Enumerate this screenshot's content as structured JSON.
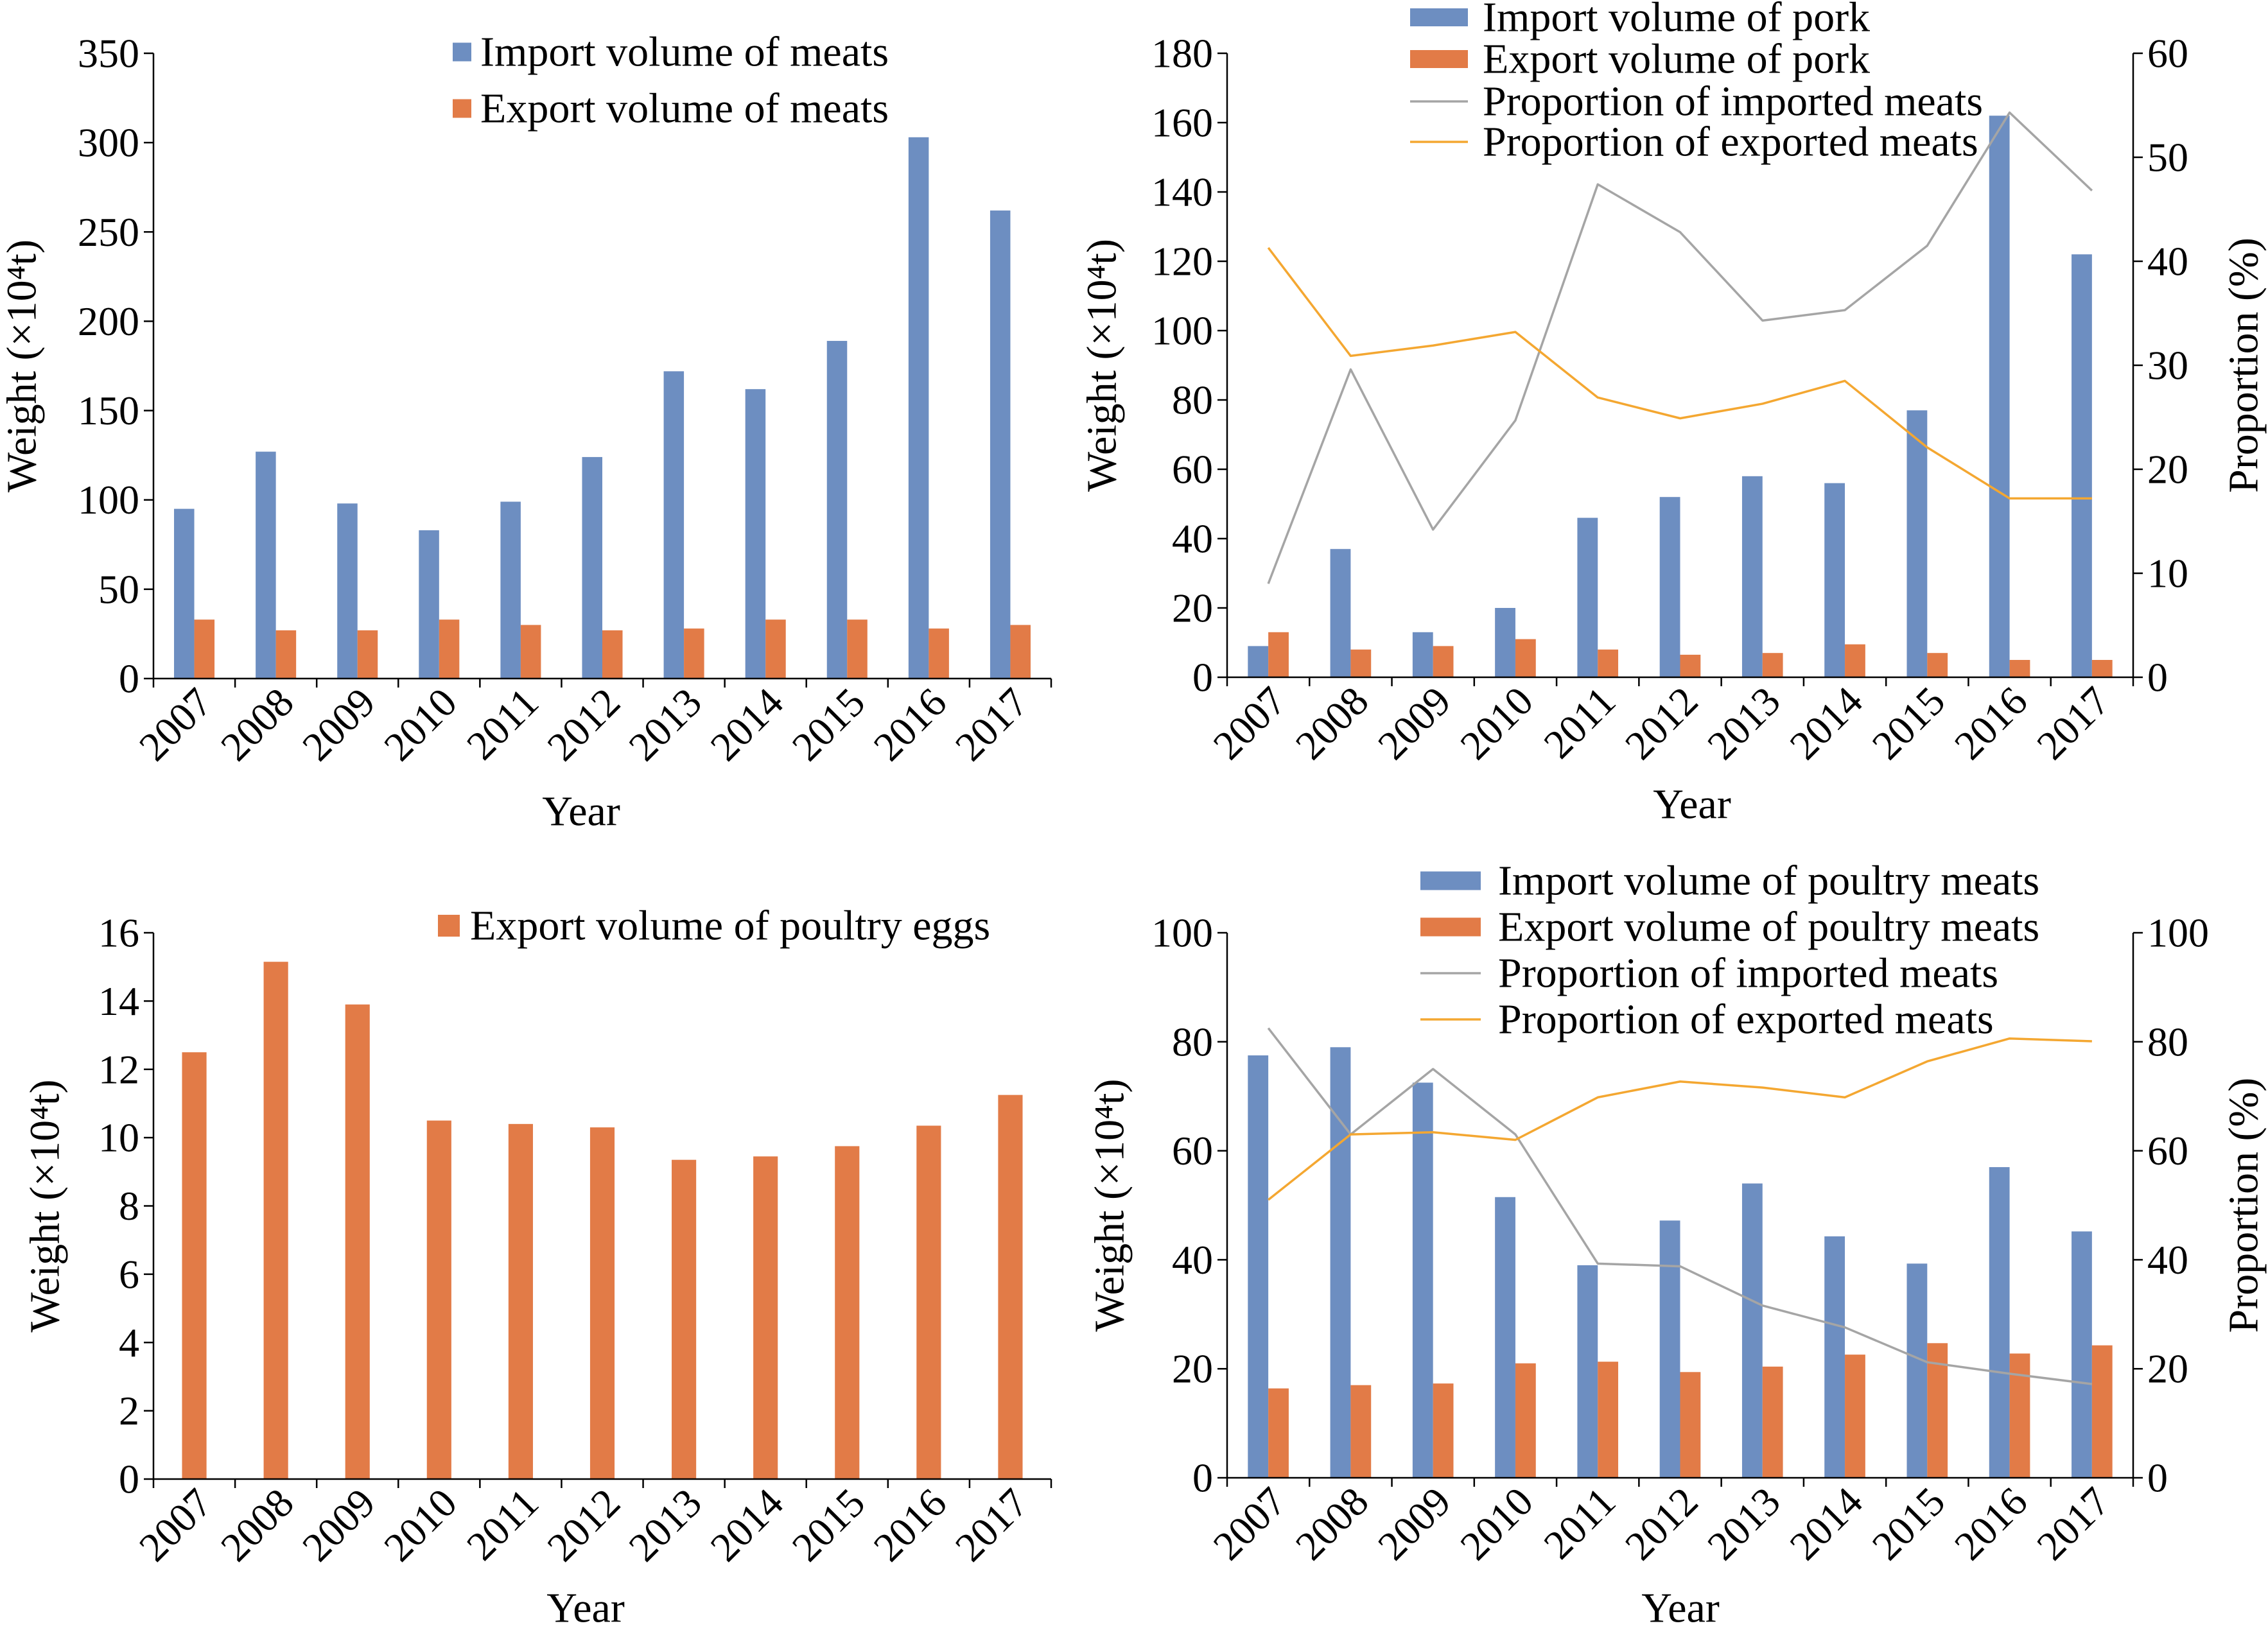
{
  "chart_data": [
    {
      "type": "bar",
      "categories": [
        "2007",
        "2008",
        "2009",
        "2010",
        "2011",
        "2012",
        "2013",
        "2014",
        "2015",
        "2016",
        "2017"
      ],
      "series": [
        {
          "name": "Import volume of meats",
          "type": "bar",
          "axis": "left",
          "color": "#6d8ec1",
          "values": [
            95,
            127,
            98,
            83,
            99,
            124,
            172,
            162,
            189,
            303,
            262
          ]
        },
        {
          "name": "Export volume of meats",
          "type": "bar",
          "axis": "left",
          "color": "#e27b47",
          "values": [
            33,
            27,
            27,
            33,
            30,
            27,
            28,
            33,
            33,
            28,
            30
          ]
        }
      ],
      "xlabel": "Year",
      "ylabel": "Weight (×10⁴t)",
      "ylim": [
        0,
        350
      ],
      "yticks": [
        0,
        50,
        100,
        150,
        200,
        250,
        300,
        350
      ],
      "legend": "top",
      "grid": false
    },
    {
      "type": "bar",
      "categories": [
        "2007",
        "2008",
        "2009",
        "2010",
        "2011",
        "2012",
        "2013",
        "2014",
        "2015",
        "2016",
        "2017"
      ],
      "series": [
        {
          "name": "Import volume of pork",
          "type": "bar",
          "axis": "left",
          "color": "#6d8ec1",
          "values": [
            9,
            37,
            13,
            20,
            46,
            52,
            58,
            56,
            77,
            162,
            122
          ]
        },
        {
          "name": "Export volume of pork",
          "type": "bar",
          "axis": "left",
          "color": "#e27b47",
          "values": [
            13,
            8,
            9,
            11,
            8,
            6.5,
            7,
            9.5,
            7,
            5,
            5
          ]
        },
        {
          "name": "Proportion of imported meats",
          "type": "line",
          "axis": "right",
          "color": "#a5a5a5",
          "values": [
            9,
            29.6,
            14.2,
            24.7,
            47.4,
            42.8,
            34.3,
            35.3,
            41.5,
            54.3,
            46.8
          ]
        },
        {
          "name": "Proportion of exported meats",
          "type": "line",
          "axis": "right",
          "color": "#f4a731",
          "values": [
            41.3,
            30.9,
            31.9,
            33.2,
            26.9,
            24.9,
            26.3,
            28.5,
            22.1,
            17.2,
            17.2
          ]
        }
      ],
      "xlabel": "Year",
      "ylabel": "Weight (×10⁴t)",
      "ylim": [
        0,
        180
      ],
      "yticks": [
        0,
        20,
        40,
        60,
        80,
        100,
        120,
        140,
        160,
        180
      ],
      "y2label": "Proportion (%)",
      "y2lim": [
        0,
        60
      ],
      "y2ticks": [
        0,
        10,
        20,
        30,
        40,
        50,
        60
      ],
      "legend": "top",
      "grid": false
    },
    {
      "type": "bar",
      "categories": [
        "2007",
        "2008",
        "2009",
        "2010",
        "2011",
        "2012",
        "2013",
        "2014",
        "2015",
        "2016",
        "2017"
      ],
      "series": [
        {
          "name": "Export volume of poultry eggs",
          "type": "bar",
          "axis": "left",
          "color": "#e27b47",
          "values": [
            12.5,
            15.15,
            13.9,
            10.5,
            10.4,
            10.3,
            9.35,
            9.45,
            9.75,
            10.35,
            11.25
          ]
        }
      ],
      "xlabel": "Year",
      "ylabel": "Weight (×10⁴t)",
      "ylim": [
        0,
        16
      ],
      "yticks": [
        0,
        2,
        4,
        6,
        8,
        10,
        12,
        14,
        16
      ],
      "legend": "top",
      "grid": false
    },
    {
      "type": "bar",
      "categories": [
        "2007",
        "2008",
        "2009",
        "2010",
        "2011",
        "2012",
        "2013",
        "2014",
        "2015",
        "2016",
        "2017"
      ],
      "series": [
        {
          "name": "Import volume of poultry meats",
          "type": "bar",
          "axis": "left",
          "color": "#6d8ec1",
          "values": [
            77.5,
            79,
            72.5,
            51.5,
            39,
            47.2,
            54,
            44.3,
            39.3,
            57,
            45.2
          ]
        },
        {
          "name": "Export volume of poultry meats",
          "type": "bar",
          "axis": "left",
          "color": "#e27b47",
          "values": [
            16.4,
            17,
            17.3,
            21,
            21.3,
            19.4,
            20.4,
            22.6,
            24.7,
            22.8,
            24.3
          ]
        },
        {
          "name": "Proportion of imported meats",
          "type": "line",
          "axis": "right",
          "color": "#a5a5a5",
          "values": [
            82.5,
            63,
            75,
            63,
            39.3,
            38.8,
            31.6,
            27.6,
            21.2,
            19.1,
            17.2
          ]
        },
        {
          "name": "Proportion of exported meats",
          "type": "line",
          "axis": "right",
          "color": "#f4a731",
          "values": [
            51,
            63,
            63.4,
            62,
            69.8,
            72.7,
            71.6,
            69.8,
            76.4,
            80.6,
            80.1
          ]
        }
      ],
      "xlabel": "Year",
      "ylabel": "Weight (×10⁴t)",
      "ylim": [
        0,
        100
      ],
      "yticks": [
        0,
        20,
        40,
        60,
        80,
        100
      ],
      "y2label": "Proportion (%)",
      "y2lim": [
        0,
        100
      ],
      "y2ticks": [
        0,
        20,
        40,
        60,
        80,
        100
      ],
      "legend": "top",
      "grid": false
    }
  ]
}
